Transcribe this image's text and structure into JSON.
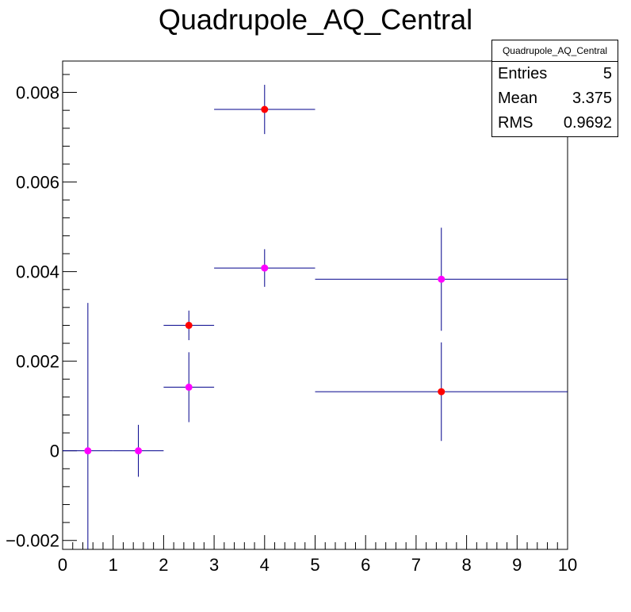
{
  "chart_data": {
    "type": "scatter",
    "title": "Quadrupole_AQ_Central",
    "xlabel": "",
    "ylabel": "",
    "xlim": [
      0,
      10
    ],
    "ylim": [
      -0.0022,
      0.0087
    ],
    "x_ticks": [
      0,
      1,
      2,
      3,
      4,
      5,
      6,
      7,
      8,
      9,
      10
    ],
    "y_ticks": [
      -0.002,
      0,
      0.002,
      0.004,
      0.006,
      0.008
    ],
    "y_tick_labels": [
      "−0.002",
      "0",
      "0.002",
      "0.004",
      "0.006",
      "0.008"
    ],
    "error_bar_color": "#00008b",
    "series": [
      {
        "marker_color": "#ff0000",
        "points": [
          {
            "x": 2.5,
            "xlo": 2,
            "xhi": 3,
            "y": 0.0028,
            "yerr": 0.00033
          },
          {
            "x": 4,
            "xlo": 3,
            "xhi": 5,
            "y": 0.00762,
            "yerr": 0.00055
          },
          {
            "x": 7.5,
            "xlo": 5,
            "xhi": 10,
            "y": 0.00132,
            "yerr": 0.0011
          }
        ]
      },
      {
        "marker_color": "#ff00ff",
        "points": [
          {
            "x": 0.5,
            "xlo": 0,
            "xhi": 1,
            "y": 0,
            "yerr": 0.0033
          },
          {
            "x": 1.5,
            "xlo": 1,
            "xhi": 2,
            "y": 0,
            "yerr": 0.00058
          },
          {
            "x": 2.5,
            "xlo": 2,
            "xhi": 3,
            "y": 0.00142,
            "yerr": 0.00078
          },
          {
            "x": 4,
            "xlo": 3,
            "xhi": 5,
            "y": 0.00408,
            "yerr": 0.00042
          },
          {
            "x": 7.5,
            "xlo": 5,
            "xhi": 10,
            "y": 0.00383,
            "yerr": 0.00115
          }
        ]
      }
    ]
  },
  "stats_box": {
    "title": "Quadrupole_AQ_Central",
    "rows": [
      {
        "label": "Entries",
        "value": "5"
      },
      {
        "label": "Mean",
        "value": "3.375"
      },
      {
        "label": "RMS",
        "value": "0.9692"
      }
    ]
  }
}
